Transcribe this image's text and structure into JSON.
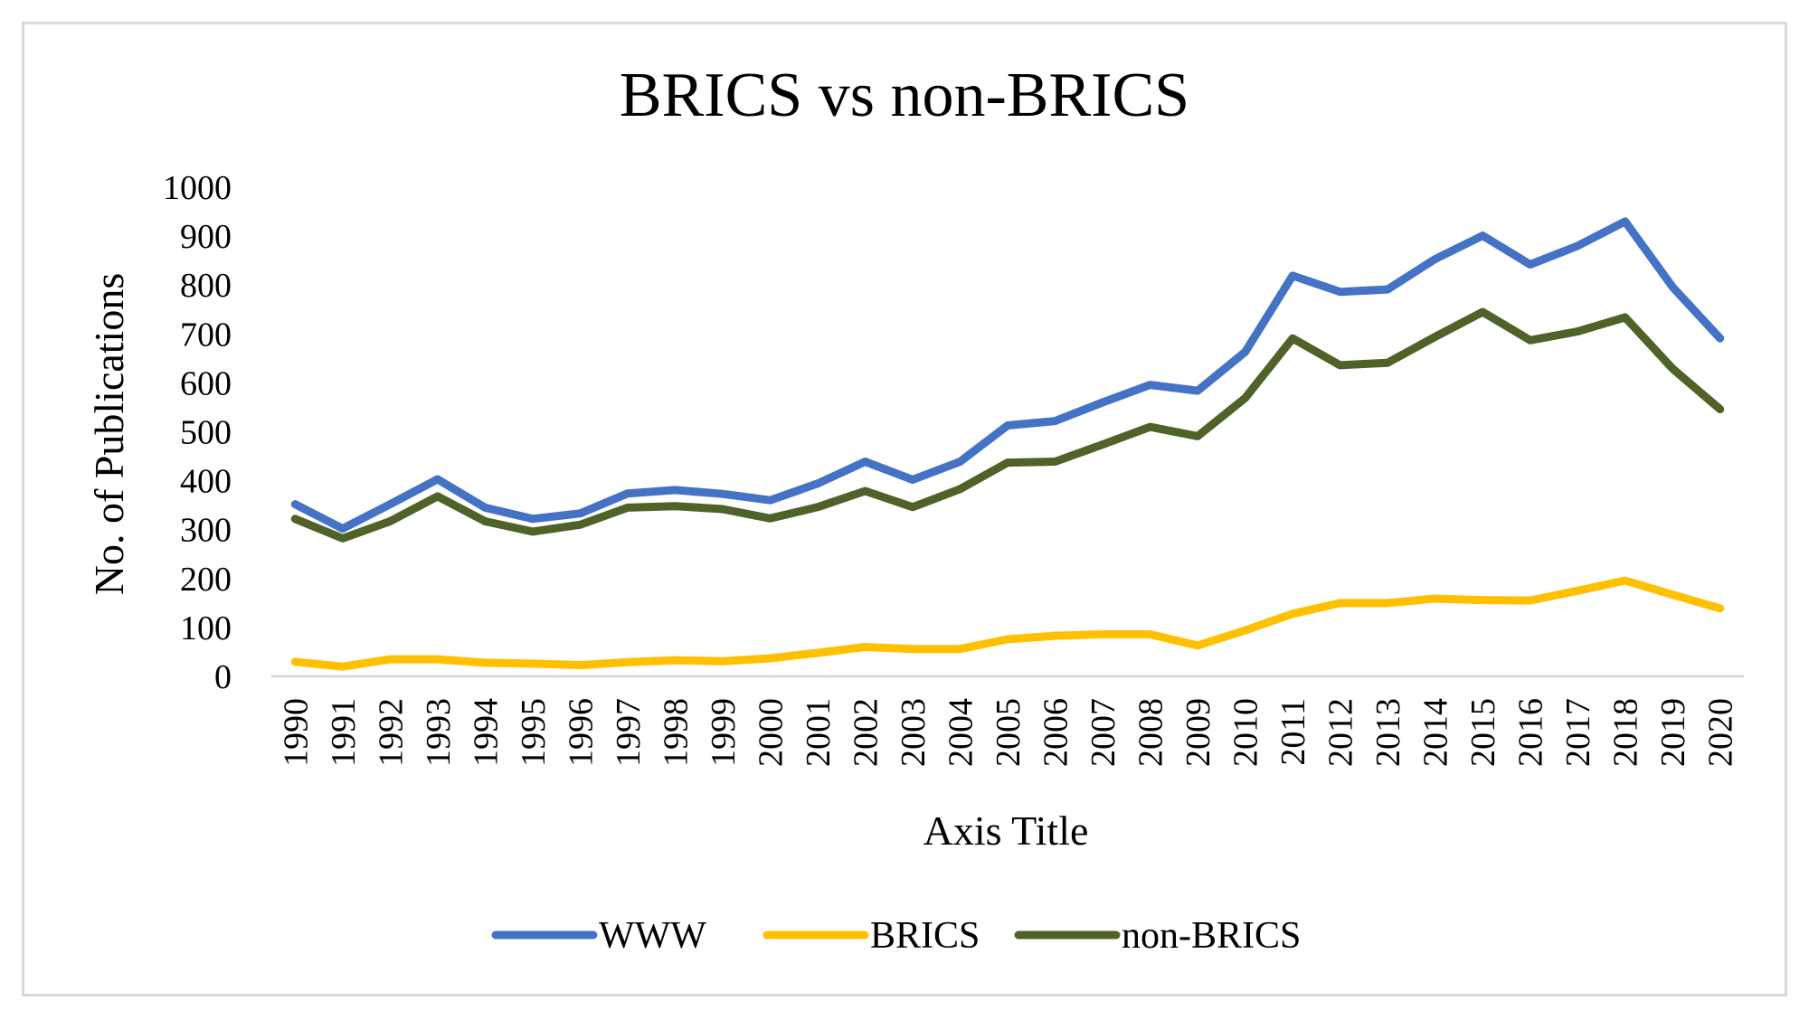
{
  "chart_data": {
    "type": "line",
    "title": "BRICS vs non-BRICS",
    "xlabel": "Axis Title",
    "ylabel": "No. of Publications",
    "ylim": [
      0,
      1000
    ],
    "yticks": [
      0,
      100,
      200,
      300,
      400,
      500,
      600,
      700,
      800,
      900,
      1000
    ],
    "grid": false,
    "legend_position": "bottom",
    "categories": [
      "1990",
      "1991",
      "1992",
      "1993",
      "1994",
      "1995",
      "1996",
      "1997",
      "1998",
      "1999",
      "2000",
      "2001",
      "2002",
      "2003",
      "2004",
      "2005",
      "2006",
      "2007",
      "2008",
      "2009",
      "2010",
      "2011",
      "2012",
      "2013",
      "2014",
      "2015",
      "2016",
      "2017",
      "2018",
      "2019",
      "2020"
    ],
    "series": [
      {
        "name": "WWW",
        "color": "#4472C4",
        "values": [
          352,
          302,
          352,
          403,
          345,
          322,
          333,
          374,
          381,
          373,
          360,
          394,
          439,
          402,
          439,
          513,
          522,
          560,
          596,
          584,
          663,
          819,
          786,
          791,
          853,
          901,
          842,
          880,
          930,
          796,
          691
        ]
      },
      {
        "name": "BRICS",
        "color": "#FFC000",
        "values": [
          30,
          20,
          35,
          35,
          28,
          26,
          23,
          29,
          33,
          31,
          37,
          48,
          60,
          56,
          56,
          76,
          83,
          86,
          86,
          63,
          94,
          128,
          150,
          150,
          159,
          156,
          155,
          175,
          196,
          167,
          139
        ]
      },
      {
        "name": "non-BRICS",
        "color": "#4F6228",
        "values": [
          322,
          282,
          317,
          368,
          317,
          296,
          310,
          345,
          348,
          342,
          323,
          346,
          379,
          346,
          383,
          437,
          439,
          474,
          510,
          491,
          569,
          691,
          636,
          641,
          694,
          745,
          687,
          705,
          734,
          629,
          546
        ]
      }
    ]
  }
}
